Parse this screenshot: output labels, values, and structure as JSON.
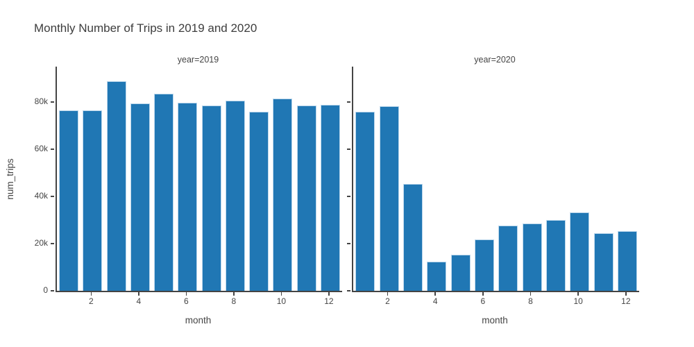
{
  "title": "Monthly Number of Trips in 2019 and 2020",
  "chart_data": {
    "type": "bar",
    "categories": [
      1,
      2,
      3,
      4,
      5,
      6,
      7,
      8,
      9,
      10,
      11,
      12
    ],
    "series": [
      {
        "name": "year=2019",
        "values": [
          76600,
          76600,
          88900,
          79300,
          83600,
          79800,
          78400,
          80600,
          75800,
          81500,
          78600,
          78900
        ]
      },
      {
        "name": "year=2020",
        "values": [
          75900,
          78300,
          45300,
          12300,
          15400,
          21900,
          27700,
          28600,
          29900,
          33200,
          24300,
          25200
        ]
      }
    ],
    "title": "Monthly Number of Trips in 2019 and 2020",
    "xlabel": "month",
    "ylabel": "num_trips",
    "ylim": [
      0,
      95000
    ],
    "yticks": [
      0,
      20000,
      40000,
      60000,
      80000
    ],
    "ytick_labels": [
      "0",
      "20k",
      "40k",
      "60k",
      "80k"
    ],
    "xticks": [
      2,
      4,
      6,
      8,
      10,
      12
    ],
    "grid": false,
    "legend_position": "none",
    "bar_color": "#2077b4",
    "axis_color": "#444444"
  }
}
